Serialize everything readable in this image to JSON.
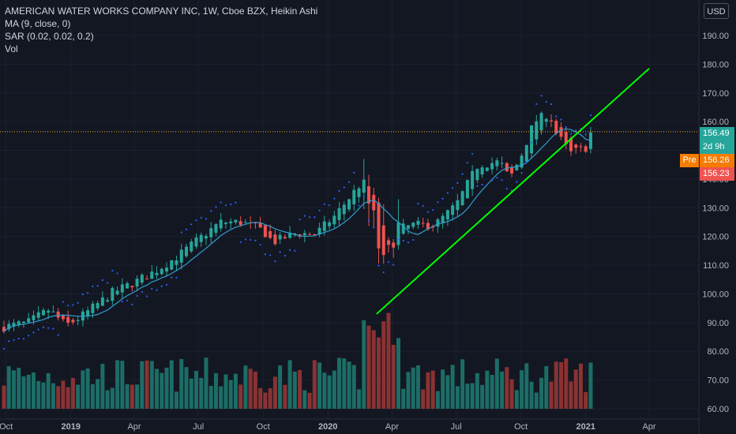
{
  "legend": {
    "title": "AMERICAN WATER WORKS COMPANY INC, 1W, Cboe BZX, Heikin Ashi",
    "ma": "MA (9, close, 0)",
    "sar": "SAR (0.02, 0.02, 0.2)",
    "vol": "Vol"
  },
  "currency": "USD",
  "tags": {
    "last_price": "156.49",
    "countdown": "2d 9h",
    "pre_label": "Pre",
    "pre_price": "156.26",
    "ha_price": "156.23"
  },
  "colors": {
    "background": "#131722",
    "up": "#26a69a",
    "down": "#ef5350",
    "vol_up": "#1c6d66",
    "vol_down": "#8a3232",
    "ma": "#2f9ed1",
    "sar": "#2962ff",
    "trendline": "#00ff00",
    "price_line": "#f5a623",
    "pre_tag": "#f57c00"
  },
  "chart_data": {
    "type": "candlestick",
    "y_axis": {
      "range": [
        58,
        198
      ],
      "ticks": [
        "190.00",
        "180.00",
        "170.00",
        "160.00",
        "150.00",
        "140.00",
        "130.00",
        "120.00",
        "110.00",
        "100.00",
        "90.00",
        "80.00",
        "70.00",
        "60.00"
      ]
    },
    "x_axis": {
      "ticks": [
        "Oct",
        "2019",
        "Apr",
        "Jul",
        "Oct",
        "2020",
        "Apr",
        "Jul",
        "Oct",
        "2021",
        "Apr"
      ]
    },
    "last_price": 156.49,
    "price_path": [
      [
        "2018-09-28",
        88.5
      ],
      [
        "2018-11-01",
        90
      ],
      [
        "2018-12-01",
        94.5
      ],
      [
        "2018-12-25",
        89
      ],
      [
        "2019-01-15",
        92
      ],
      [
        "2019-03-01",
        100.5
      ],
      [
        "2019-04-01",
        104
      ],
      [
        "2019-05-01",
        108
      ],
      [
        "2019-06-01",
        113
      ],
      [
        "2019-07-01",
        119
      ],
      [
        "2019-08-01",
        125
      ],
      [
        "2019-09-01",
        125
      ],
      [
        "2019-10-01",
        122
      ],
      [
        "2019-10-15",
        118
      ],
      [
        "2019-11-15",
        121
      ],
      [
        "2019-12-15",
        121
      ],
      [
        "2020-01-10",
        127
      ],
      [
        "2020-02-15",
        138
      ],
      [
        "2020-03-01",
        130
      ],
      [
        "2020-03-15",
        115
      ],
      [
        "2020-03-23",
        105
      ],
      [
        "2020-04-01",
        122
      ],
      [
        "2020-05-01",
        124
      ],
      [
        "2020-06-01",
        124
      ],
      [
        "2020-07-01",
        131
      ],
      [
        "2020-08-01",
        145
      ],
      [
        "2020-09-01",
        146
      ],
      [
        "2020-09-15",
        140
      ],
      [
        "2020-10-01",
        148
      ],
      [
        "2020-10-20",
        160
      ],
      [
        "2020-11-10",
        163
      ],
      [
        "2020-11-20",
        156
      ],
      [
        "2020-12-10",
        149
      ],
      [
        "2021-01-01",
        151
      ],
      [
        "2021-01-08",
        156
      ]
    ],
    "series": [
      {
        "name": "MA (9, close, 0)",
        "type": "line"
      },
      {
        "name": "SAR (0.02, 0.02, 0.2)",
        "type": "dots"
      },
      {
        "name": "Vol",
        "type": "bar"
      }
    ],
    "trendline": {
      "from": [
        "2020-03-10",
        93
      ],
      "to": [
        "2021-04-01",
        178.5
      ]
    }
  }
}
